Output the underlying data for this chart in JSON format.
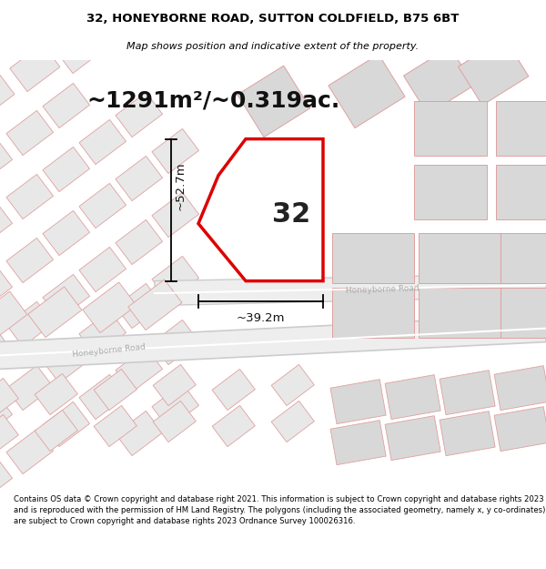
{
  "title_line1": "32, HONEYBORNE ROAD, SUTTON COLDFIELD, B75 6BT",
  "title_line2": "Map shows position and indicative extent of the property.",
  "area_text": "~1291m²/~0.319ac.",
  "label_number": "32",
  "dim_height": "~52.7m",
  "dim_width": "~39.2m",
  "road_label_upper": "Honeyborne Road",
  "road_label_lower": "Honeyborne Road",
  "footer_text": "Contains OS data © Crown copyright and database right 2021. This information is subject to Crown copyright and database rights 2023 and is reproduced with the permission of HM Land Registry. The polygons (including the associated geometry, namely x, y co-ordinates) are subject to Crown copyright and database rights 2023 Ordnance Survey 100026316.",
  "map_bg": "#f7f6f5",
  "plot_color": "#dd0000",
  "parcel_fill": "#e8e8e8",
  "parcel_edge": "#e0a0a0",
  "dark_parcel_fill": "#d8d8d8",
  "road_fill": "#eeeeee",
  "road_edge": "#cccccc",
  "bg_parcel_edge": "#c8c8c8"
}
